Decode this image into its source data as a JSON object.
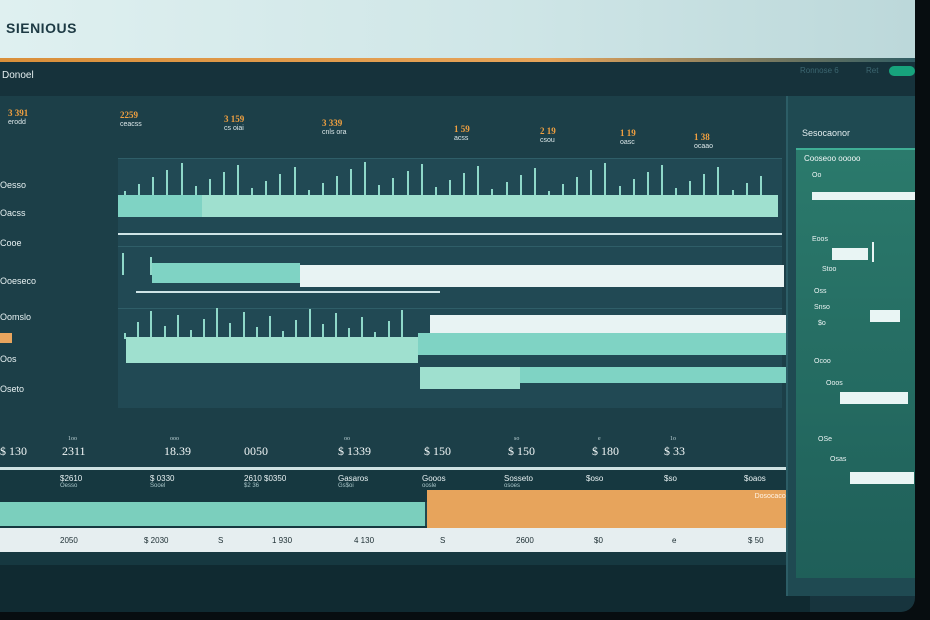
{
  "app": {
    "brand": "SIENIOUS",
    "section": "Donoel"
  },
  "topnav": {
    "link1": "Ronnose 6",
    "link2": "Ret"
  },
  "stats": [
    {
      "value": "3 391",
      "sub": "erodd"
    },
    {
      "value": "2259",
      "sub": "ceacss"
    },
    {
      "value": "3 159",
      "sub": "cs oiai"
    },
    {
      "value": "3 339",
      "sub": "cnls ora"
    },
    {
      "value": "1 59",
      "sub": "acss"
    },
    {
      "value": "2 19",
      "sub": "csou"
    },
    {
      "value": "1 19",
      "sub": "oasc"
    },
    {
      "value": "1 38",
      "sub": "ocaao"
    }
  ],
  "rows": {
    "r1": "Oesso",
    "r2": "Oacss",
    "r3": "Cooe",
    "r4": "Ooeseco",
    "r5": "Oomslo",
    "r6": "Oos",
    "r7": "Oseto"
  },
  "axis_ticks": [
    {
      "value": "$ 130",
      "label": ""
    },
    {
      "value": "2311",
      "label": "1oo"
    },
    {
      "value": "18.39",
      "label": "ooo"
    },
    {
      "value": "0050",
      "label": ""
    },
    {
      "value": "$ 1339",
      "label": "oo"
    },
    {
      "value": "$ 150",
      "label": ""
    },
    {
      "value": "$ 150",
      "label": "so"
    },
    {
      "value": "$ 180",
      "label": "e"
    },
    {
      "value": "$ 33",
      "label": "1o"
    }
  ],
  "bottom_heads": [
    {
      "title": "$2610",
      "sub": "Oesso"
    },
    {
      "title": "$ 0330",
      "sub": "Sooel"
    },
    {
      "title": "2610 $0350",
      "sub": "$2 36"
    },
    {
      "title": "Gasaros",
      "sub": "Gs$oi"
    },
    {
      "title": "Gooos",
      "sub": "oosle"
    },
    {
      "title": "Sosseto",
      "sub": "osoes"
    },
    {
      "title": "$oso",
      "sub": ""
    },
    {
      "title": "$so",
      "sub": ""
    },
    {
      "title": "$oaos",
      "sub": ""
    }
  ],
  "orange_label": "Dosocacosoa",
  "bottom_axis": [
    "2050",
    "$ 2030",
    "S",
    "1 930",
    "4 130",
    "S",
    "2600",
    "$0",
    "e",
    "$ 50"
  ],
  "side": {
    "title": "Sesocaonor",
    "card_head": "Cooseoo ooooo",
    "fields": [
      "Oo",
      "Eoos",
      "Stoo",
      "Oss",
      "Snso",
      "$o",
      "Ocoo",
      "Ooos",
      "OSe",
      "Osas"
    ]
  }
}
